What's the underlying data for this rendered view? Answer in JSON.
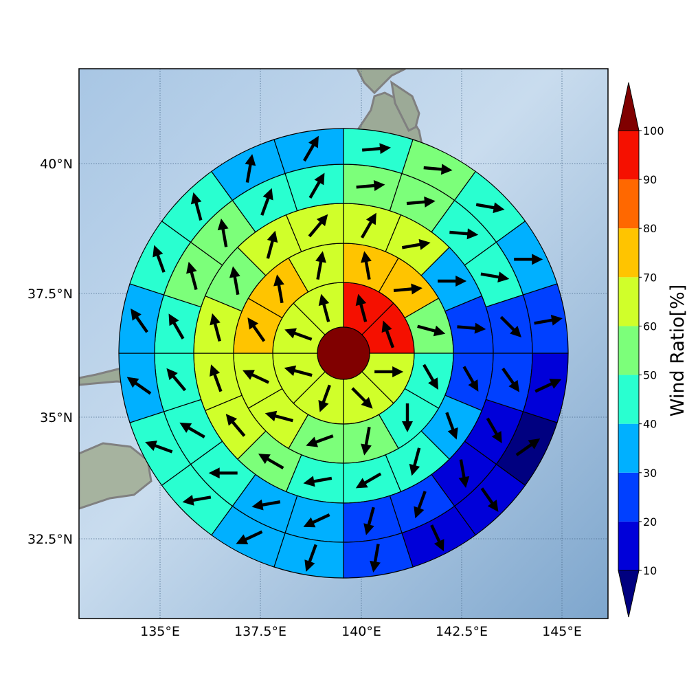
{
  "map": {
    "lon_ticks": [
      "135°E",
      "137.5°E",
      "140°E",
      "142.5°E",
      "145°E"
    ],
    "lat_ticks": [
      "40°N",
      "37.5°N",
      "35°N",
      "32.5°N"
    ],
    "coast_color": "#808080",
    "ocean_color": "#8fb4d8",
    "land_color": "#9aa993"
  },
  "colorbar": {
    "label": "Wind Ratio[%]",
    "ticks": [
      "10",
      "20",
      "30",
      "40",
      "50",
      "60",
      "70",
      "80",
      "90",
      "100"
    ],
    "under_color": "#000080",
    "over_color": "#800000",
    "bins": [
      "#0000d9",
      "#0040ff",
      "#00b0ff",
      "#29ffd0",
      "#7cff7a",
      "#d0ff2a",
      "#ffc400",
      "#ff6800",
      "#f51000"
    ]
  },
  "chart_data": {
    "type": "heatmap",
    "description_axes": "polar grid of wind ratio bins with wind direction arrows",
    "center_value_color": "#800000",
    "rings": [
      {
        "values": [
          90,
          90,
          60,
          60,
          60,
          60,
          60,
          60
        ],
        "arrow_deg": [
          345,
          340,
          90,
          135,
          200,
          285,
          290,
          345
        ]
      },
      {
        "values": [
          75,
          75,
          55,
          45,
          45,
          55,
          55,
          60,
          65,
          75,
          75,
          65
        ],
        "arrow_deg": [
          350,
          85,
          105,
          150,
          180,
          190,
          250,
          285,
          295,
          325,
          350,
          10
        ]
      },
      {
        "values": [
          60,
          60,
          35,
          25,
          20,
          35,
          45,
          45,
          45,
          55,
          65,
          65,
          60,
          55,
          60,
          65
        ],
        "arrow_deg": [
          30,
          80,
          90,
          95,
          150,
          160,
          195,
          240,
          260,
          300,
          320,
          340,
          345,
          350,
          15,
          40
        ],
        "comment": "ring 3"
      },
      {
        "values": [
          50,
          50,
          45,
          45,
          25,
          25,
          15,
          15,
          25,
          25,
          35,
          35,
          45,
          45,
          45,
          45,
          55,
          55,
          45,
          45
        ],
        "arrow_deg": [
          85,
          85,
          95,
          100,
          135,
          145,
          150,
          170,
          200,
          195,
          245,
          260,
          270,
          300,
          320,
          330,
          345,
          350,
          20,
          30
        ]
      },
      {
        "values": [
          45,
          55,
          45,
          35,
          25,
          15,
          5,
          15,
          15,
          25,
          35,
          35,
          45,
          45,
          35,
          35,
          45,
          45,
          35,
          35
        ],
        "arrow_deg": [
          85,
          95,
          100,
          90,
          80,
          65,
          55,
          145,
          155,
          190,
          200,
          245,
          260,
          290,
          305,
          325,
          340,
          345,
          10,
          30
        ]
      }
    ]
  }
}
